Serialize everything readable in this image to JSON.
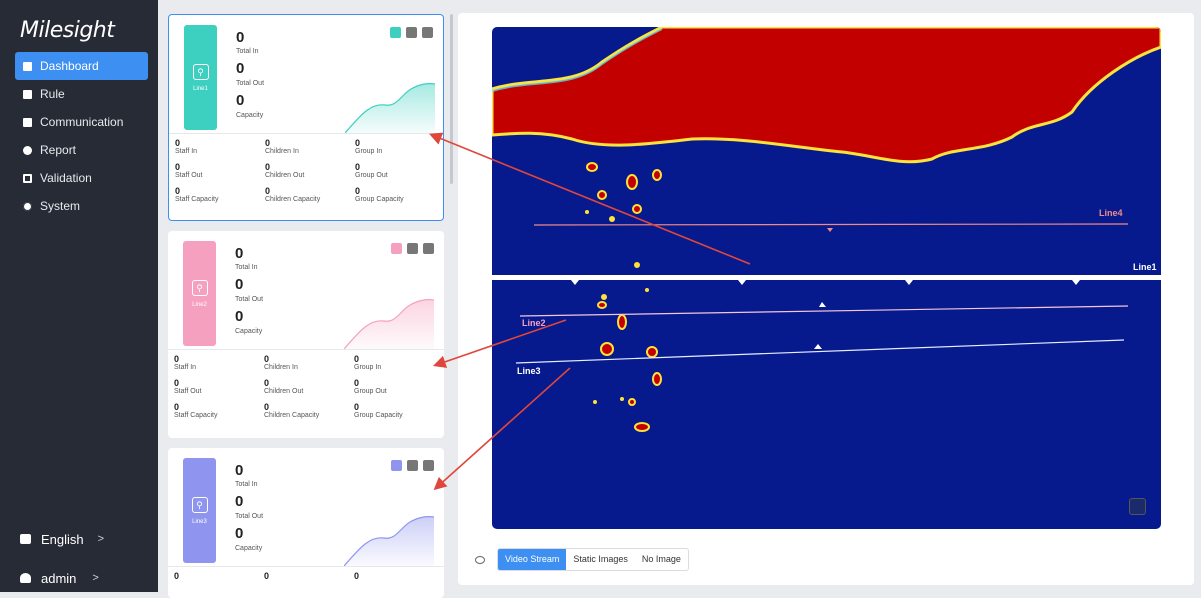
{
  "app": {
    "logo": "Milesight"
  },
  "sidebar": {
    "items": [
      {
        "label": "Dashboard",
        "icon": "dashboard-icon",
        "active": true
      },
      {
        "label": "Rule",
        "icon": "rule-icon"
      },
      {
        "label": "Communication",
        "icon": "communication-icon"
      },
      {
        "label": "Report",
        "icon": "report-icon"
      },
      {
        "label": "Validation",
        "icon": "validation-icon"
      },
      {
        "label": "System",
        "icon": "system-icon"
      }
    ],
    "language": "English",
    "user": "admin",
    "chevron": ">"
  },
  "cards": [
    {
      "badge": "Line1",
      "color": "#3dcfbf",
      "selected": true,
      "total_in": "0",
      "total_in_label": "Total In",
      "total_out": "0",
      "total_out_label": "Total Out",
      "capacity": "0",
      "capacity_label": "Capacity",
      "grid": [
        {
          "value": "0",
          "label": "Staff In"
        },
        {
          "value": "0",
          "label": "Children In"
        },
        {
          "value": "0",
          "label": "Group In"
        },
        {
          "value": "0",
          "label": "Staff Out"
        },
        {
          "value": "0",
          "label": "Children Out"
        },
        {
          "value": "0",
          "label": "Group Out"
        },
        {
          "value": "0",
          "label": "Staff Capacity"
        },
        {
          "value": "0",
          "label": "Children Capacity"
        },
        {
          "value": "0",
          "label": "Group Capacity"
        }
      ]
    },
    {
      "badge": "Line2",
      "color": "#f6a0bf",
      "selected": false,
      "total_in": "0",
      "total_in_label": "Total In",
      "total_out": "0",
      "total_out_label": "Total Out",
      "capacity": "0",
      "capacity_label": "Capacity",
      "grid": [
        {
          "value": "0",
          "label": "Staff In"
        },
        {
          "value": "0",
          "label": "Children In"
        },
        {
          "value": "0",
          "label": "Group In"
        },
        {
          "value": "0",
          "label": "Staff Out"
        },
        {
          "value": "0",
          "label": "Children Out"
        },
        {
          "value": "0",
          "label": "Group Out"
        },
        {
          "value": "0",
          "label": "Staff Capacity"
        },
        {
          "value": "0",
          "label": "Children Capacity"
        },
        {
          "value": "0",
          "label": "Group Capacity"
        }
      ]
    },
    {
      "badge": "Line3",
      "color": "#8f95ef",
      "selected": false,
      "total_in": "0",
      "total_in_label": "Total In",
      "total_out": "0",
      "total_out_label": "Total Out",
      "capacity": "0",
      "capacity_label": "Capacity",
      "grid": [
        {
          "value": "0",
          "label": ""
        },
        {
          "value": "0",
          "label": ""
        },
        {
          "value": "0",
          "label": ""
        }
      ]
    }
  ],
  "video": {
    "lines": [
      {
        "name": "Line4",
        "color": "#f08a8a"
      },
      {
        "name": "Line1",
        "color": "#ffffff"
      },
      {
        "name": "Line2",
        "color": "#f6a0bf"
      },
      {
        "name": "Line3",
        "color": "#ffffff"
      }
    ],
    "background_color": "#061a8e",
    "heat_color": "#c00000"
  },
  "view_modes": {
    "options": [
      "Video Stream",
      "Static Images",
      "No Image"
    ],
    "selected": "Video Stream"
  },
  "accent": "#3d8ff2"
}
